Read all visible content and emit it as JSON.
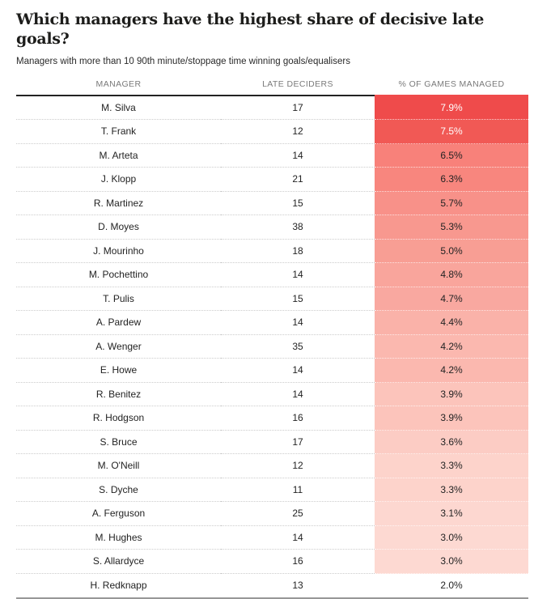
{
  "page": {
    "title": "Which managers have the highest share of decisive late goals?",
    "subtitle": "Managers with more than 10 90th minute/stoppage time winning goals/equalisers"
  },
  "table": {
    "columns": [
      "MANAGER",
      "LATE DECIDERS",
      "% OF GAMES MANAGED"
    ],
    "accent_red": "#ef4b4b",
    "header_rule_color": "#222222",
    "bottom_rule_color": "#979797",
    "rows": [
      {
        "manager": "M. Silva",
        "late_deciders": "17",
        "pct": "7.9%",
        "bg": "#ef4b4b",
        "fg": "#ffffff"
      },
      {
        "manager": "T. Frank",
        "late_deciders": "12",
        "pct": "7.5%",
        "bg": "#f15955",
        "fg": "#ffffff"
      },
      {
        "manager": "M. Arteta",
        "late_deciders": "14",
        "pct": "6.5%",
        "bg": "#f8817a",
        "fg": "#232323"
      },
      {
        "manager": "J. Klopp",
        "late_deciders": "21",
        "pct": "6.3%",
        "bg": "#f8867e",
        "fg": "#232323"
      },
      {
        "manager": "R. Martinez",
        "late_deciders": "15",
        "pct": "5.7%",
        "bg": "#f89189",
        "fg": "#232323"
      },
      {
        "manager": "D. Moyes",
        "late_deciders": "38",
        "pct": "5.3%",
        "bg": "#f8988f",
        "fg": "#232323"
      },
      {
        "manager": "J. Mourinho",
        "late_deciders": "18",
        "pct": "5.0%",
        "bg": "#f89e94",
        "fg": "#232323"
      },
      {
        "manager": "M. Pochettino",
        "late_deciders": "14",
        "pct": "4.8%",
        "bg": "#f9a59c",
        "fg": "#232323"
      },
      {
        "manager": "T. Pulis",
        "late_deciders": "15",
        "pct": "4.7%",
        "bg": "#f9a8a0",
        "fg": "#232323"
      },
      {
        "manager": "A. Pardew",
        "late_deciders": "14",
        "pct": "4.4%",
        "bg": "#fab2a9",
        "fg": "#232323"
      },
      {
        "manager": "A. Wenger",
        "late_deciders": "35",
        "pct": "4.2%",
        "bg": "#fbb8af",
        "fg": "#232323"
      },
      {
        "manager": "E. Howe",
        "late_deciders": "14",
        "pct": "4.2%",
        "bg": "#fbb8af",
        "fg": "#232323"
      },
      {
        "manager": "R. Benitez",
        "late_deciders": "14",
        "pct": "3.9%",
        "bg": "#fcc4bb",
        "fg": "#232323"
      },
      {
        "manager": "R. Hodgson",
        "late_deciders": "16",
        "pct": "3.9%",
        "bg": "#fcc4bb",
        "fg": "#232323"
      },
      {
        "manager": "S. Bruce",
        "late_deciders": "17",
        "pct": "3.6%",
        "bg": "#fcccc4",
        "fg": "#232323"
      },
      {
        "manager": "M. O'Neill",
        "late_deciders": "12",
        "pct": "3.3%",
        "bg": "#fdd3cb",
        "fg": "#232323"
      },
      {
        "manager": "S. Dyche",
        "late_deciders": "11",
        "pct": "3.3%",
        "bg": "#fdd3cb",
        "fg": "#232323"
      },
      {
        "manager": "A. Ferguson",
        "late_deciders": "25",
        "pct": "3.1%",
        "bg": "#fdd7d0",
        "fg": "#232323"
      },
      {
        "manager": "M. Hughes",
        "late_deciders": "14",
        "pct": "3.0%",
        "bg": "#fdd9d2",
        "fg": "#232323"
      },
      {
        "manager": "S. Allardyce",
        "late_deciders": "16",
        "pct": "3.0%",
        "bg": "#fdd9d2",
        "fg": "#232323"
      },
      {
        "manager": "H. Redknapp",
        "late_deciders": "13",
        "pct": "2.0%",
        "bg": "#ffffff",
        "fg": "#232323"
      }
    ]
  },
  "chart_data": {
    "type": "table",
    "title": "Which managers have the highest share of decisive late goals?",
    "subtitle": "Managers with more than 10 90th minute/stoppage time winning goals/equalisers",
    "columns": [
      "MANAGER",
      "LATE DECIDERS",
      "% OF GAMES MANAGED"
    ],
    "rows": [
      [
        "M. Silva",
        17,
        7.9
      ],
      [
        "T. Frank",
        12,
        7.5
      ],
      [
        "M. Arteta",
        14,
        6.5
      ],
      [
        "J. Klopp",
        21,
        6.3
      ],
      [
        "R. Martinez",
        15,
        5.7
      ],
      [
        "D. Moyes",
        38,
        5.3
      ],
      [
        "J. Mourinho",
        18,
        5.0
      ],
      [
        "M. Pochettino",
        14,
        4.8
      ],
      [
        "T. Pulis",
        15,
        4.7
      ],
      [
        "A. Pardew",
        14,
        4.4
      ],
      [
        "A. Wenger",
        35,
        4.2
      ],
      [
        "E. Howe",
        14,
        4.2
      ],
      [
        "R. Benitez",
        14,
        3.9
      ],
      [
        "R. Hodgson",
        16,
        3.9
      ],
      [
        "S. Bruce",
        17,
        3.6
      ],
      [
        "M. O'Neill",
        12,
        3.3
      ],
      [
        "S. Dyche",
        11,
        3.3
      ],
      [
        "A. Ferguson",
        25,
        3.1
      ],
      [
        "M. Hughes",
        14,
        3.0
      ],
      [
        "S. Allardyce",
        16,
        3.0
      ],
      [
        "H. Redknapp",
        13,
        2.0
      ]
    ],
    "heatmap_column": "% OF GAMES MANAGED",
    "heatmap_scale": {
      "max_value": 7.9,
      "min_value": 2.0,
      "max_color": "#ef4b4b",
      "min_color": "#ffffff"
    },
    "legend_position": "none",
    "grid": "dotted-row-separators"
  }
}
